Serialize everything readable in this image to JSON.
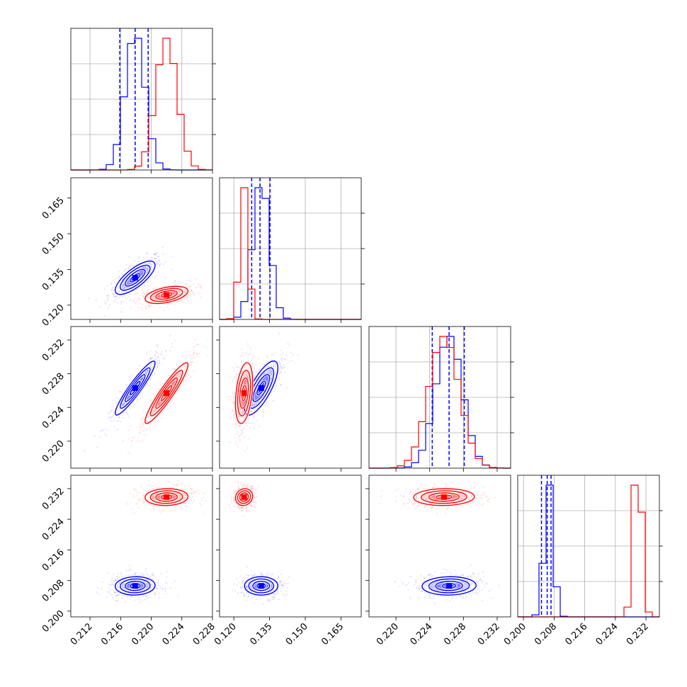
{
  "chart_data": {
    "type": "corner",
    "title": "",
    "grid": true,
    "legend": "none",
    "colors": {
      "series_a": "#0000ff",
      "series_b": "#ff0000"
    },
    "params": [
      {
        "range": [
          0.2095,
          0.228
        ],
        "ticks": [
          0.212,
          0.216,
          0.22,
          0.224,
          0.228
        ],
        "tick_labels": [
          "0.212",
          "0.216",
          "0.220",
          "0.224",
          "0.228"
        ]
      },
      {
        "range": [
          0.114,
          0.1735
        ],
        "ticks": [
          0.12,
          0.135,
          0.15,
          0.165
        ],
        "tick_labels": [
          "0.120",
          "0.135",
          "0.150",
          "0.165"
        ]
      },
      {
        "range": [
          0.2168,
          0.2336
        ],
        "ticks": [
          0.22,
          0.224,
          0.228,
          0.232
        ],
        "tick_labels": [
          "0.220",
          "0.224",
          "0.228",
          "0.232"
        ]
      },
      {
        "range": [
          0.1985,
          0.2355
        ],
        "ticks": [
          0.2,
          0.208,
          0.216,
          0.224,
          0.232
        ],
        "tick_labels": [
          "0.200",
          "0.208",
          "0.216",
          "0.224",
          "0.232"
        ]
      }
    ],
    "series": [
      {
        "color": "#0000ff",
        "mean": [
          0.2179,
          0.1315,
          0.2263,
          0.2066
        ],
        "std": [
          0.0013,
          0.0035,
          0.0016,
          0.0012
        ],
        "quantiles": [
          [
            0.2159,
            0.2179,
            0.2196
          ],
          [
            0.1275,
            0.131,
            0.1352
          ],
          [
            0.2243,
            0.2263,
            0.2281
          ],
          [
            0.2047,
            0.2062,
            0.2072
          ]
        ],
        "correlations": [
          [
            0,
            1,
            0.75
          ],
          [
            0,
            2,
            0.93
          ],
          [
            1,
            2,
            0.75
          ],
          [
            0,
            3,
            0.05
          ],
          [
            1,
            3,
            0.0
          ],
          [
            2,
            3,
            0.05
          ]
        ]
      },
      {
        "color": "#ff0000",
        "mean": [
          0.222,
          0.1243,
          0.2257,
          0.2298
        ],
        "std": [
          0.0014,
          0.0018,
          0.0018,
          0.0011
        ],
        "quantiles": [],
        "correlations": [
          [
            0,
            1,
            0.45
          ],
          [
            0,
            2,
            0.93
          ],
          [
            1,
            2,
            0.35
          ],
          [
            0,
            3,
            0.05
          ],
          [
            1,
            3,
            0.1
          ],
          [
            2,
            3,
            0.05
          ]
        ]
      }
    ]
  }
}
